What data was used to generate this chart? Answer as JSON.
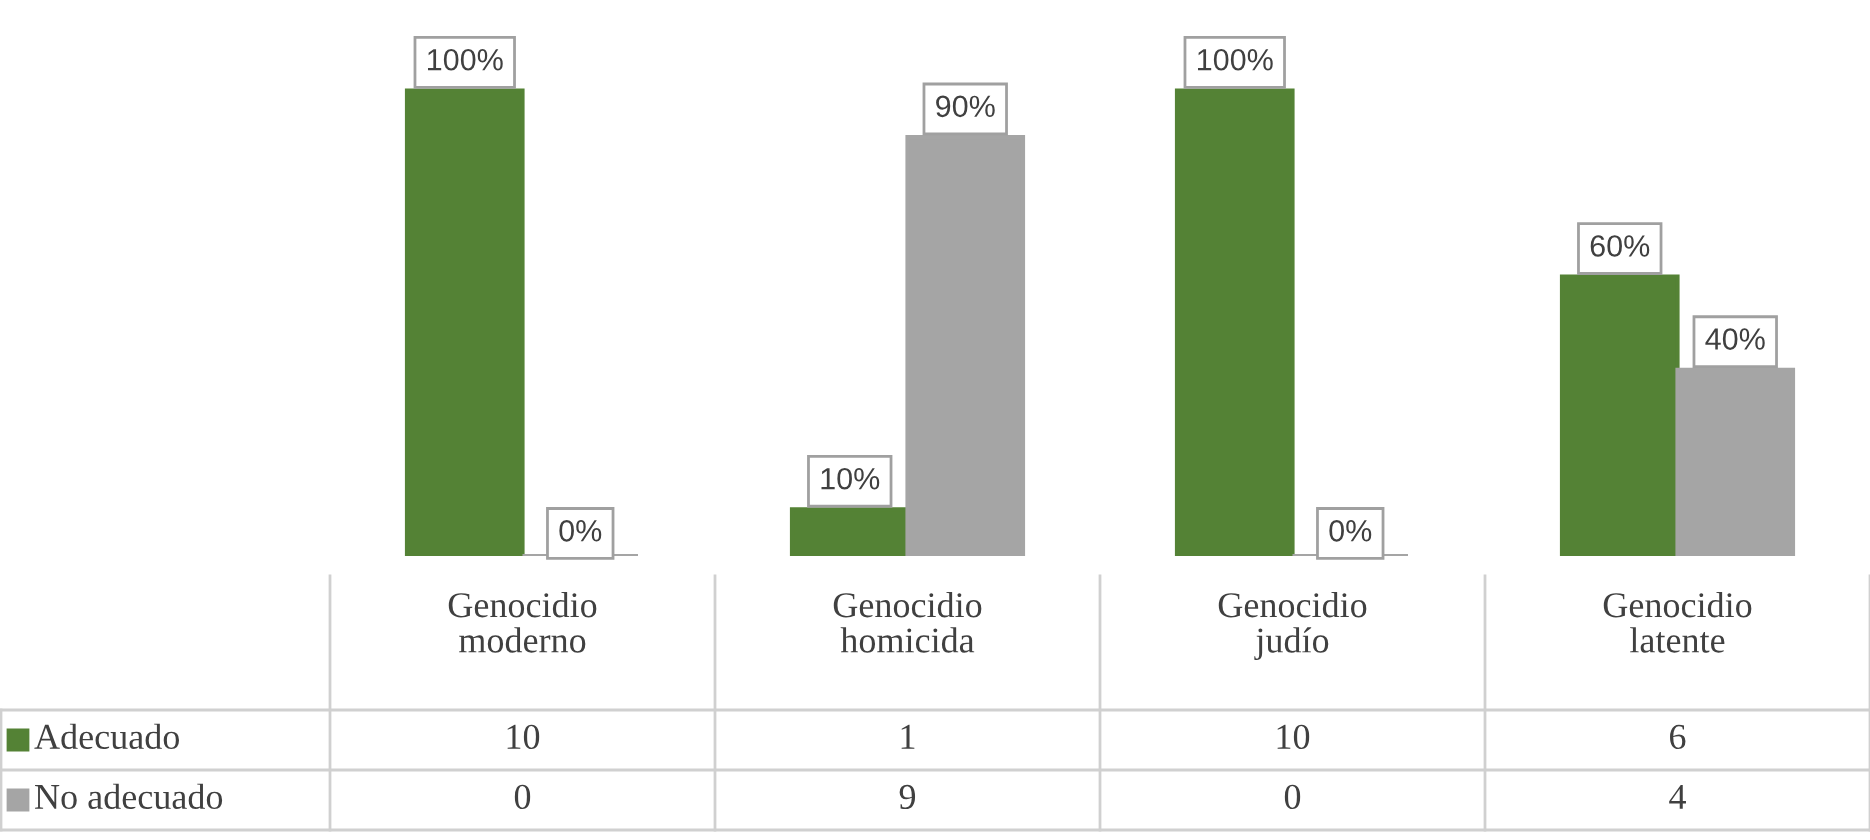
{
  "chart_data": [
    {
      "type": "bar",
      "categories": [
        "Genocidio moderno",
        "Genocidio homicida",
        "Genocidio judío",
        "Genocidio latente"
      ],
      "legend": "bottom",
      "series": [
        {
          "name": "Adecuado",
          "color": "#548235",
          "values": [
            100,
            10,
            100,
            60
          ],
          "value_labels": [
            "100%",
            "10%",
            "100%",
            "60%"
          ]
        },
        {
          "name": "No adecuado",
          "color": "#a5a5a5",
          "values": [
            0,
            90,
            0,
            40
          ],
          "value_labels": [
            "0%",
            "90%",
            "0%",
            "40%"
          ]
        }
      ]
    },
    {
      "type": "other",
      "annotations": [
        "10",
        "1",
        "10",
        "6",
        "0",
        "9",
        "0",
        "4"
      ]
    }
  ]
}
